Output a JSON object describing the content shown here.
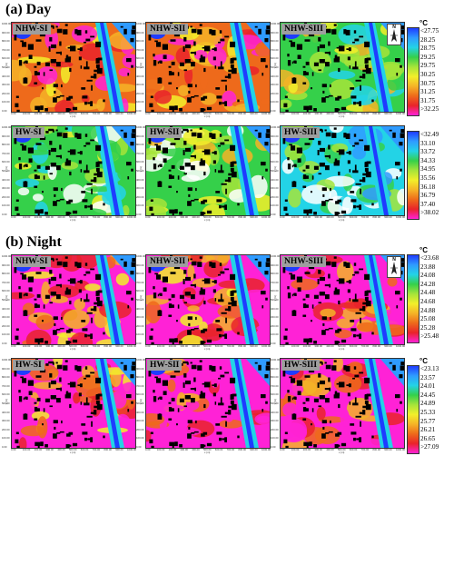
{
  "sections": [
    {
      "title": "(a) Day",
      "unit": "°C",
      "legend": [
        "<27.75",
        "28.25",
        "28.75",
        "29.25",
        "29.75",
        "30.25",
        "30.75",
        "31.25",
        "31.75",
        ">32.25"
      ],
      "legend2": [
        "<32.49",
        "33.10",
        "33.72",
        "34.33",
        "34.95",
        "35.56",
        "36.18",
        "36.79",
        "37.40",
        ">38.02"
      ],
      "panels": [
        "NHW-SI",
        "NHW-SII",
        "NHW-SIII",
        "HW-SI",
        "HW-SII",
        "HW-SIII"
      ]
    },
    {
      "title": "(b) Night",
      "unit": "°C",
      "legend": [
        "<23.68",
        "23.88",
        "24.08",
        "24.28",
        "24.48",
        "24.68",
        "24.88",
        "25.08",
        "25.28",
        ">25.48"
      ],
      "legend2": [
        "<23.13",
        "23.57",
        "24.01",
        "24.45",
        "24.89",
        "25.33",
        "25.77",
        "26.21",
        "26.65",
        ">27.09"
      ],
      "panels": [
        "NHW-SI",
        "NHW-SII",
        "NHW-SIII",
        "HW-SI",
        "HW-SII",
        "HW-SIII"
      ]
    }
  ],
  "axis": {
    "x_ticks": [
      "0.00",
      "100.00",
      "200.00",
      "300.00",
      "400.00",
      "500.00",
      "600.00",
      "700.00",
      "800.00",
      "900.00",
      "1000.00"
    ],
    "y_ticks": [
      "1000.00",
      "900.00",
      "800.00",
      "700.00",
      "600.00",
      "500.00",
      "400.00",
      "300.00",
      "200.00",
      "100.00",
      "0.00"
    ],
    "x_label": "x (m)",
    "y_label": "y (m)"
  },
  "north_letter": "N",
  "palette": {
    "day": [
      "#1f3cff",
      "#2f9bff",
      "#23d3e6",
      "#35d04a",
      "#a6e43a",
      "#f2ef2a",
      "#f5b327",
      "#ee6a1b",
      "#e9232a",
      "#ff22d6"
    ],
    "night": [
      "#1f3cff",
      "#2f9bff",
      "#23d3e6",
      "#35d04a",
      "#a6e43a",
      "#f2ef2a",
      "#f5b327",
      "#ee6a1b",
      "#e9232a",
      "#ff22d6"
    ]
  }
}
